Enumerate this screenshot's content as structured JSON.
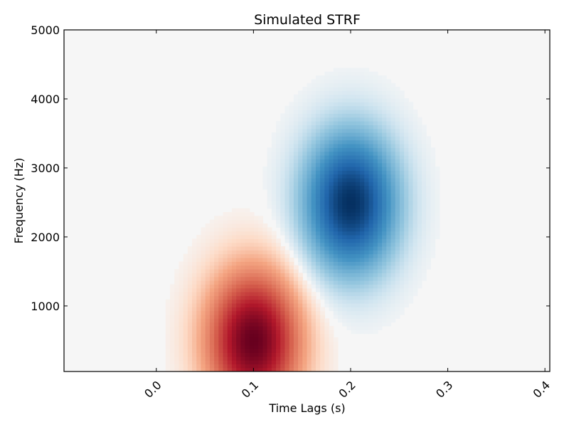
{
  "chart_data": {
    "type": "heatmap",
    "title": "Simulated STRF",
    "xlabel": "Time Lags (s)",
    "ylabel": "Frequency (Hz)",
    "xlim": [
      -0.095,
      0.405
    ],
    "ylim": [
      50,
      5000
    ],
    "xticks": [
      0.0,
      0.1,
      0.2,
      0.3,
      0.4
    ],
    "xtick_labels": [
      "0.0",
      "0.1",
      "0.2",
      "0.3",
      "0.4"
    ],
    "yticks": [
      1000,
      2000,
      3000,
      4000,
      5000
    ],
    "ytick_labels": [
      "1000",
      "2000",
      "3000",
      "4000",
      "5000"
    ],
    "colormap": "RdBu_r",
    "background_color": "#f6f6f6",
    "components": [
      {
        "sign": "positive",
        "peak": 1.0,
        "center_time": 0.1,
        "center_freq": 500,
        "sigma_time": 0.033,
        "sigma_freq": 700,
        "color": "#67001f"
      },
      {
        "sign": "negative",
        "peak": -1.0,
        "center_time": 0.2,
        "center_freq": 2500,
        "sigma_time": 0.033,
        "sigma_freq": 700,
        "color": "#053061"
      }
    ],
    "grid": false,
    "legend": "none"
  }
}
